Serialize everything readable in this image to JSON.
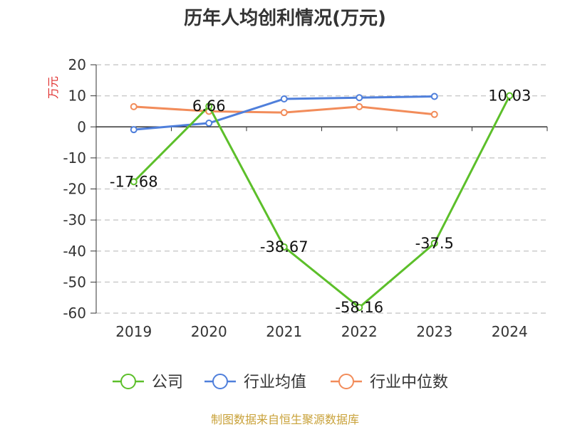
{
  "chart_data": {
    "type": "line",
    "title": "历年人均创利情况(万元)",
    "ylabel": "万元",
    "categories": [
      "2019",
      "2020",
      "2021",
      "2022",
      "2023",
      "2024"
    ],
    "ylim": [
      -60,
      20
    ],
    "yticks": [
      20,
      10,
      0,
      -10,
      -20,
      -30,
      -40,
      -50,
      -60
    ],
    "grid": true,
    "legend_position": "bottom",
    "series": [
      {
        "name": "公司",
        "color": "#5cbf2a",
        "values": [
          -17.68,
          6.66,
          -38.67,
          -58.16,
          -37.5,
          10.03
        ],
        "labels": [
          "-17.68",
          "6.66",
          "-38.67",
          "-58.16",
          "-37.5",
          "10.03"
        ]
      },
      {
        "name": "行业均值",
        "color": "#4f7fdb",
        "values": [
          -0.9,
          1.2,
          9.0,
          9.4,
          9.8,
          null
        ]
      },
      {
        "name": "行业中位数",
        "color": "#f28c5a",
        "values": [
          6.5,
          5.0,
          4.6,
          6.5,
          4.0,
          null
        ]
      }
    ]
  },
  "source": "制图数据来自恒生聚源数据库",
  "colors": {
    "source_text": "#c9a23a",
    "ylabel_text": "#e0302f",
    "grid": "#cccccc",
    "axis": "#333333"
  }
}
